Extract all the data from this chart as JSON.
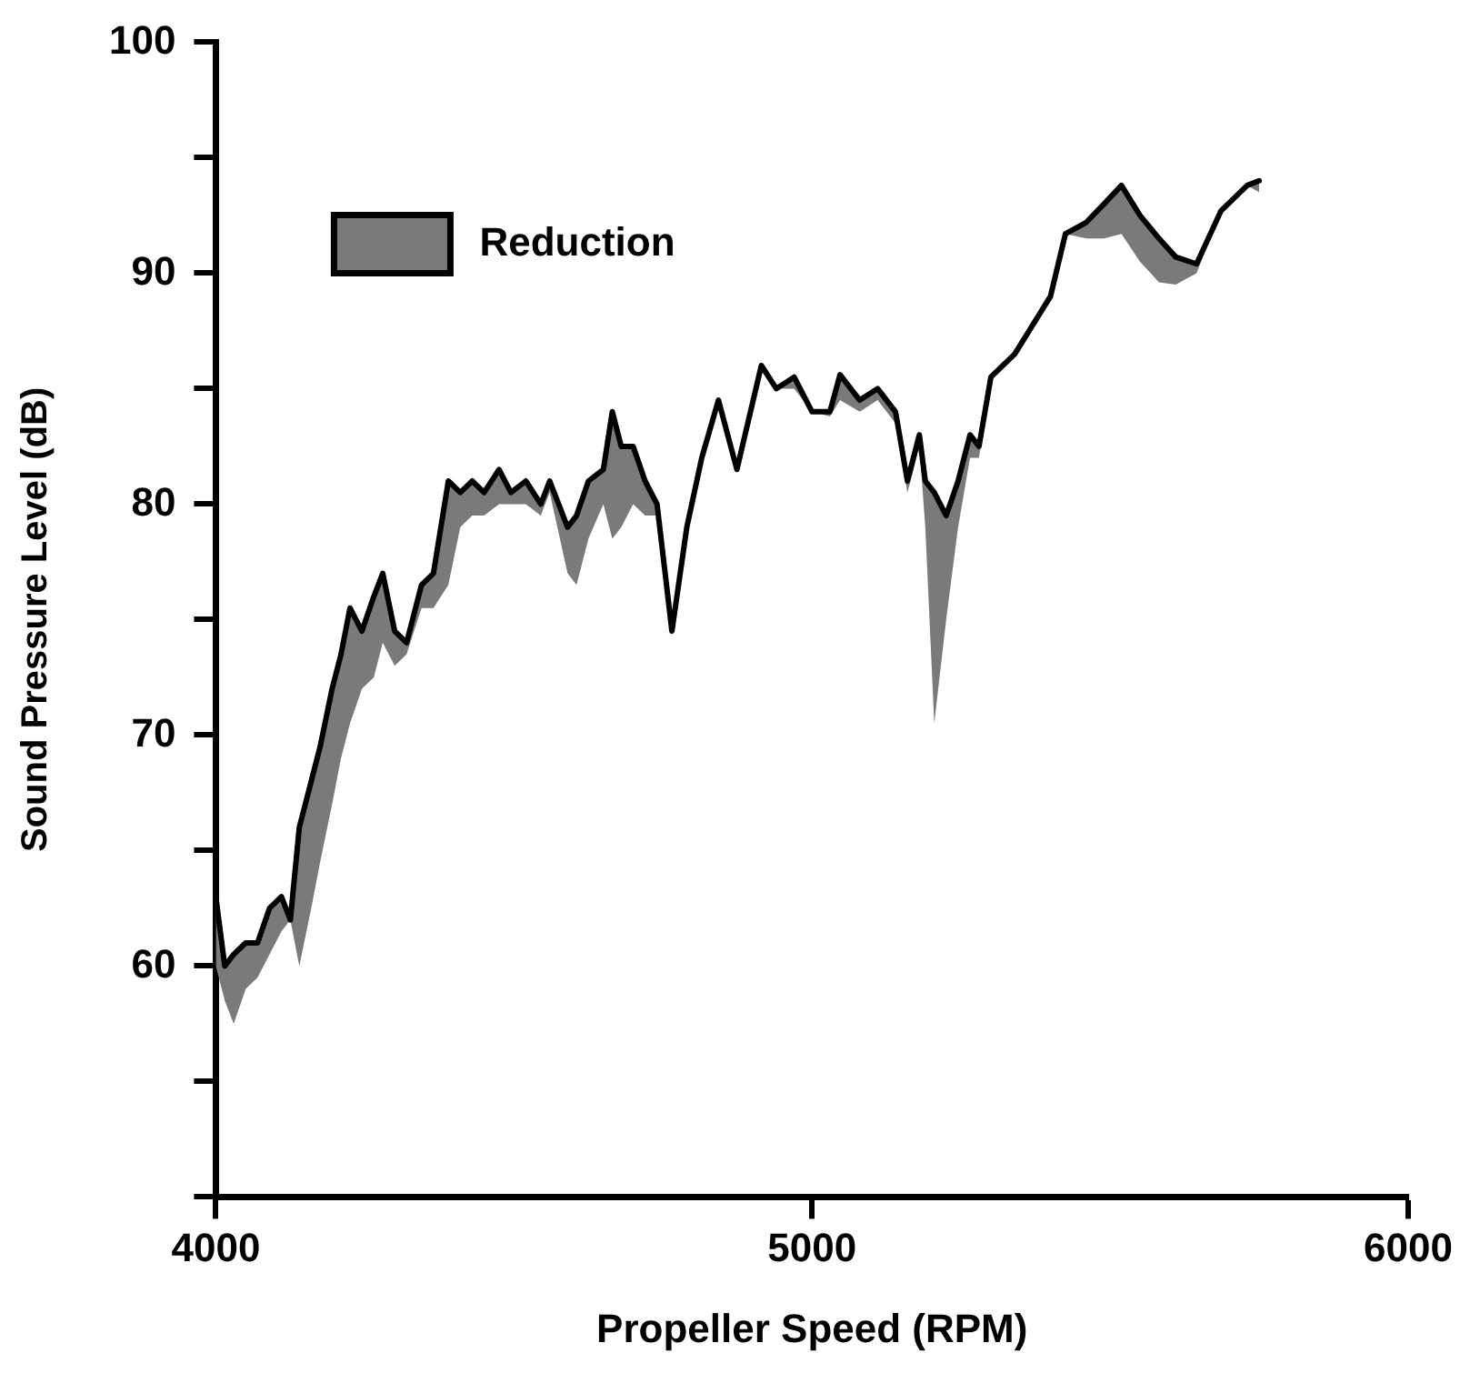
{
  "chart_data": {
    "type": "line",
    "xlabel": "Propeller Speed (RPM)",
    "ylabel": "Sound Pressure Level (dB)",
    "x": [
      4000,
      4015,
      4030,
      4050,
      4070,
      4090,
      4110,
      4125,
      4140,
      4160,
      4175,
      4195,
      4210,
      4225,
      4245,
      4265,
      4280,
      4300,
      4320,
      4345,
      4365,
      4390,
      4410,
      4430,
      4450,
      4475,
      4495,
      4520,
      4545,
      4560,
      4590,
      4605,
      4625,
      4650,
      4665,
      4680,
      4700,
      4720,
      4740,
      4765,
      4790,
      4815,
      4843,
      4874,
      4915,
      4940,
      4970,
      5000,
      5030,
      5047,
      5080,
      5110,
      5140,
      5160,
      5180,
      5190,
      5205,
      5225,
      5245,
      5265,
      5280,
      5300,
      5340,
      5400,
      5425,
      5460,
      5490,
      5519,
      5550,
      5582,
      5610,
      5645,
      5686,
      5730,
      5750
    ],
    "series": [
      {
        "name": "Reduction",
        "color": "#000000",
        "values": [
          63,
          60,
          60.5,
          61,
          61,
          62.5,
          63,
          62,
          66,
          68,
          69.5,
          72,
          73.5,
          75.5,
          74.5,
          76,
          77,
          74.5,
          74,
          76.5,
          77,
          81,
          80.5,
          81,
          80.5,
          81.5,
          80.5,
          81,
          80,
          81,
          79,
          79.5,
          81,
          81.5,
          84,
          82.5,
          82.5,
          81,
          80,
          74.5,
          79,
          82,
          84.5,
          81.5,
          86,
          85,
          85.5,
          84,
          84,
          85.6,
          84.5,
          85,
          84,
          81,
          83,
          81,
          80.5,
          79.5,
          81,
          83,
          82.5,
          85.5,
          86.5,
          89,
          91.7,
          92.2,
          93,
          93.8,
          92.5,
          91.5,
          90.7,
          90.4,
          92.7,
          93.8,
          94
        ],
        "upper": [
          63,
          60,
          60.5,
          61,
          61,
          62.5,
          63,
          62,
          66,
          68,
          69.5,
          72,
          73.5,
          75.5,
          74.5,
          76,
          77,
          74.5,
          74,
          76.5,
          77,
          81,
          80.5,
          81,
          80.5,
          81.5,
          80.5,
          81,
          80,
          81,
          79,
          79.5,
          81,
          81.5,
          84,
          82.5,
          82.5,
          81,
          80,
          74.5,
          79,
          82,
          84.5,
          81.5,
          86,
          85,
          85.5,
          84,
          84,
          85.6,
          84.5,
          85,
          84,
          81,
          83,
          81,
          80.5,
          79.5,
          81,
          83,
          82.5,
          85.5,
          86.5,
          89,
          91.7,
          92.2,
          93,
          93.8,
          92.5,
          91.5,
          90.7,
          90.4,
          92.7,
          93.8,
          94
        ],
        "lower": [
          60,
          58.5,
          57.5,
          59,
          59.5,
          60.5,
          61.5,
          62,
          60,
          62.5,
          64.5,
          67,
          69,
          70.5,
          72,
          72.5,
          74,
          73,
          73.5,
          75.5,
          75.5,
          76.5,
          79,
          79.5,
          79.5,
          80,
          80,
          80,
          79.5,
          80.5,
          77,
          76.5,
          78.5,
          80,
          78.5,
          79,
          80,
          79.5,
          79.5,
          74.5,
          79,
          82,
          84.5,
          81.5,
          86,
          85,
          85,
          84,
          83.8,
          84.5,
          84,
          84.5,
          83.5,
          80.5,
          82.5,
          79,
          70.5,
          75,
          79,
          82,
          82,
          85.5,
          86.5,
          89,
          91.7,
          91.5,
          91.5,
          91.7,
          90.5,
          89.6,
          89.5,
          90,
          92.7,
          93.8,
          93.5
        ]
      }
    ],
    "xlim": [
      4000,
      6000
    ],
    "xticks": [
      4000,
      5000,
      6000
    ],
    "ylim": [
      50,
      100
    ],
    "yticks": [
      {
        "value": 50,
        "label": null
      },
      {
        "value": 55,
        "label": null
      },
      60,
      {
        "value": 65,
        "label": null
      },
      70,
      {
        "value": 75,
        "label": null
      },
      80,
      {
        "value": 85,
        "label": null
      },
      90,
      {
        "value": 95,
        "label": null
      },
      100
    ],
    "grid": false,
    "legend": "top left"
  }
}
